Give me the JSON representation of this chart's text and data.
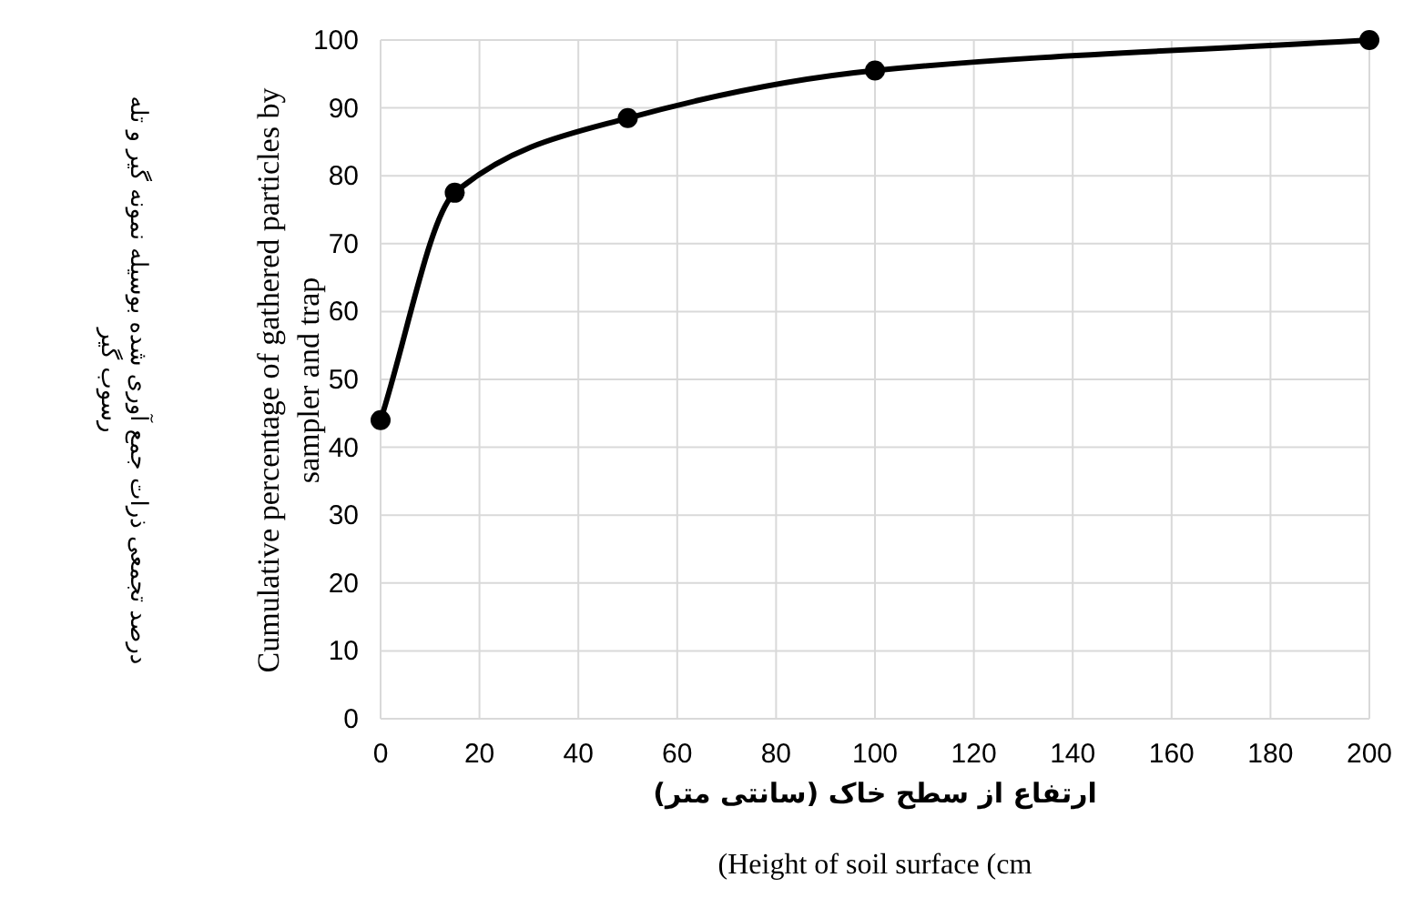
{
  "chart_data": {
    "type": "line",
    "xlabel": [
      "ارتفاع از سطح خاک (سانتی متر)",
      "(Height of soil surface (cm"
    ],
    "ylabel": [
      "درصد تجمعی ذرات جمع آوری شده بوسیله نمونه گیر و تله رسوب گیر",
      "Cumulative percentage of gathered particles by sampler and trap"
    ],
    "x": [
      0,
      15,
      50,
      100,
      200
    ],
    "series": [
      {
        "color": "#000000",
        "values": [
          44,
          77.5,
          88.5,
          95.5,
          100
        ]
      }
    ],
    "xlim": [
      0,
      200
    ],
    "xticks": [
      0,
      20,
      40,
      60,
      80,
      100,
      120,
      140,
      160,
      180,
      200
    ],
    "ylim": [
      0,
      100
    ],
    "yticks": [
      0,
      10,
      20,
      30,
      40,
      50,
      60,
      70,
      80,
      90,
      100
    ],
    "grid": true,
    "marker": "circle",
    "line_style": "solid"
  }
}
